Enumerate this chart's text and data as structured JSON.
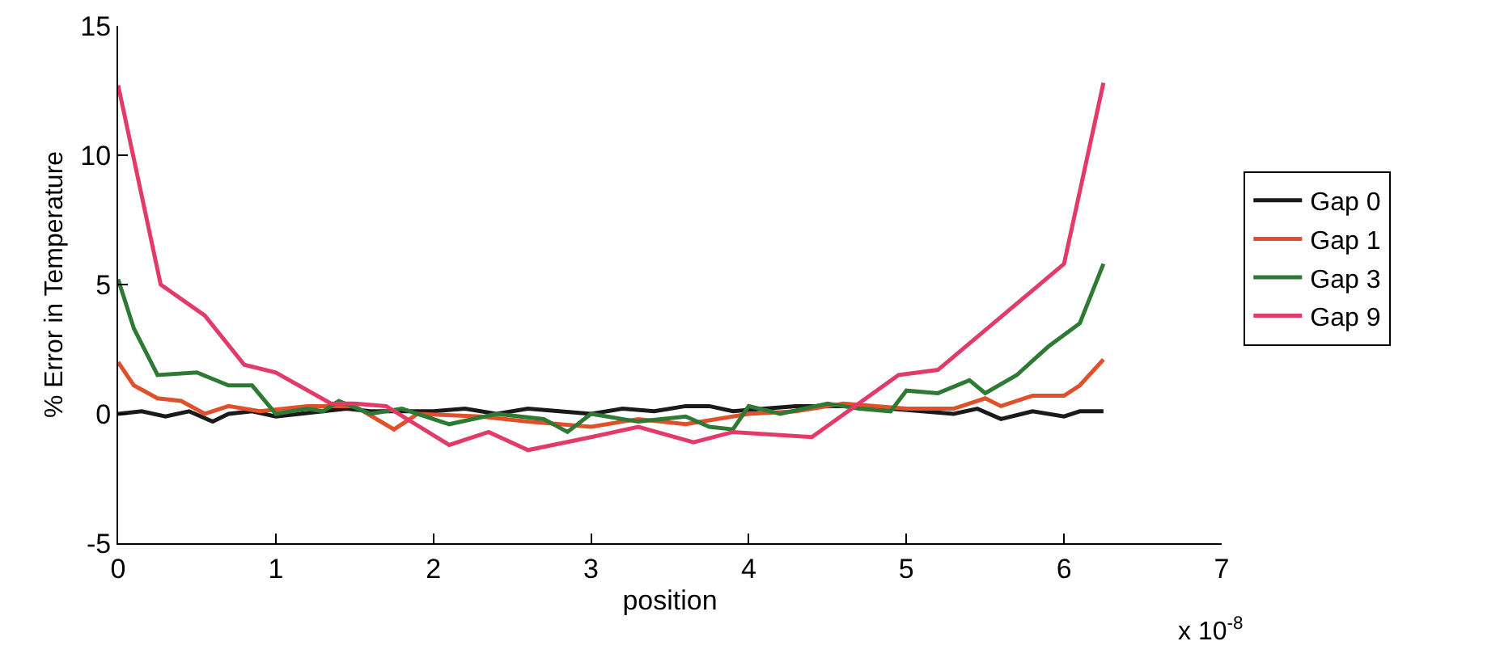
{
  "chart_data": {
    "type": "line",
    "xlabel": "position",
    "ylabel": "% Error in Temperature",
    "annotations": [
      "x 10$^{-8}$"
    ],
    "xlim": [
      0,
      7
    ],
    "xticks": [
      0,
      1,
      2,
      3,
      4,
      5,
      6,
      7
    ],
    "ylim": [
      -5,
      15
    ],
    "yticks": [
      -5,
      0,
      5,
      10,
      15
    ],
    "grid": false,
    "legend": "right",
    "line_style": "solid",
    "marker": "none",
    "series": [
      {
        "name": "Gap 0",
        "color": "#1a1a1a",
        "x": [
          0,
          0.15,
          0.3,
          0.45,
          0.6,
          0.7,
          0.85,
          1.0,
          1.15,
          1.3,
          1.45,
          1.6,
          1.8,
          2.0,
          2.2,
          2.4,
          2.6,
          2.8,
          3.0,
          3.2,
          3.4,
          3.6,
          3.75,
          3.9,
          4.1,
          4.3,
          4.5,
          4.7,
          4.9,
          5.1,
          5.3,
          5.45,
          5.6,
          5.8,
          6.0,
          6.1,
          6.25
        ],
        "values": [
          0,
          0.1,
          -0.1,
          0.1,
          -0.3,
          0,
          0.1,
          -0.1,
          0,
          0.1,
          0.2,
          0.1,
          0.1,
          0.1,
          0.2,
          0,
          0.2,
          0.1,
          0,
          0.2,
          0.1,
          0.3,
          0.3,
          0.1,
          0.2,
          0.3,
          0.3,
          0.3,
          0.2,
          0.1,
          0,
          0.2,
          -0.2,
          0.1,
          -0.1,
          0.1,
          0.1
        ]
      },
      {
        "name": "Gap 1",
        "color": "#e0502a",
        "x": [
          0,
          0.1,
          0.25,
          0.4,
          0.55,
          0.7,
          0.9,
          1.2,
          1.5,
          1.75,
          1.9,
          2.3,
          2.6,
          3.0,
          3.3,
          3.6,
          4.0,
          4.3,
          4.6,
          5.0,
          5.3,
          5.5,
          5.6,
          5.8,
          6.0,
          6.1,
          6.25
        ],
        "values": [
          2.0,
          1.1,
          0.6,
          0.5,
          0,
          0.3,
          0.1,
          0.3,
          0.3,
          -0.6,
          0,
          -0.1,
          -0.3,
          -0.5,
          -0.2,
          -0.4,
          0,
          0.1,
          0.4,
          0.2,
          0.2,
          0.6,
          0.3,
          0.7,
          0.7,
          1.1,
          2.1
        ]
      },
      {
        "name": "Gap 3",
        "color": "#2e7a34",
        "x": [
          0,
          0.1,
          0.25,
          0.5,
          0.7,
          0.85,
          1.0,
          1.2,
          1.3,
          1.4,
          1.6,
          1.8,
          2.1,
          2.4,
          2.7,
          2.85,
          3.0,
          3.3,
          3.6,
          3.75,
          3.9,
          4.0,
          4.2,
          4.5,
          4.7,
          4.9,
          5.0,
          5.2,
          5.4,
          5.5,
          5.7,
          5.9,
          6.1,
          6.25
        ],
        "values": [
          5.2,
          3.3,
          1.5,
          1.6,
          1.1,
          1.1,
          0,
          0.2,
          0.1,
          0.5,
          0,
          0.2,
          -0.4,
          0,
          -0.2,
          -0.7,
          0,
          -0.3,
          -0.1,
          -0.5,
          -0.6,
          0.3,
          0,
          0.4,
          0.2,
          0.1,
          0.9,
          0.8,
          1.3,
          0.8,
          1.5,
          2.6,
          3.5,
          5.8
        ]
      },
      {
        "name": "Gap 9",
        "color": "#e23b6a",
        "x": [
          0,
          0.27,
          0.55,
          0.8,
          1.0,
          1.35,
          1.5,
          1.7,
          2.1,
          2.35,
          2.6,
          3.0,
          3.3,
          3.65,
          3.9,
          4.4,
          4.95,
          5.2,
          6.0,
          6.25
        ],
        "values": [
          12.7,
          5.0,
          3.8,
          1.9,
          1.6,
          0.4,
          0.4,
          0.3,
          -1.2,
          -0.7,
          -1.4,
          -0.9,
          -0.5,
          -1.1,
          -0.7,
          -0.9,
          1.5,
          1.7,
          5.8,
          12.8
        ]
      }
    ]
  }
}
